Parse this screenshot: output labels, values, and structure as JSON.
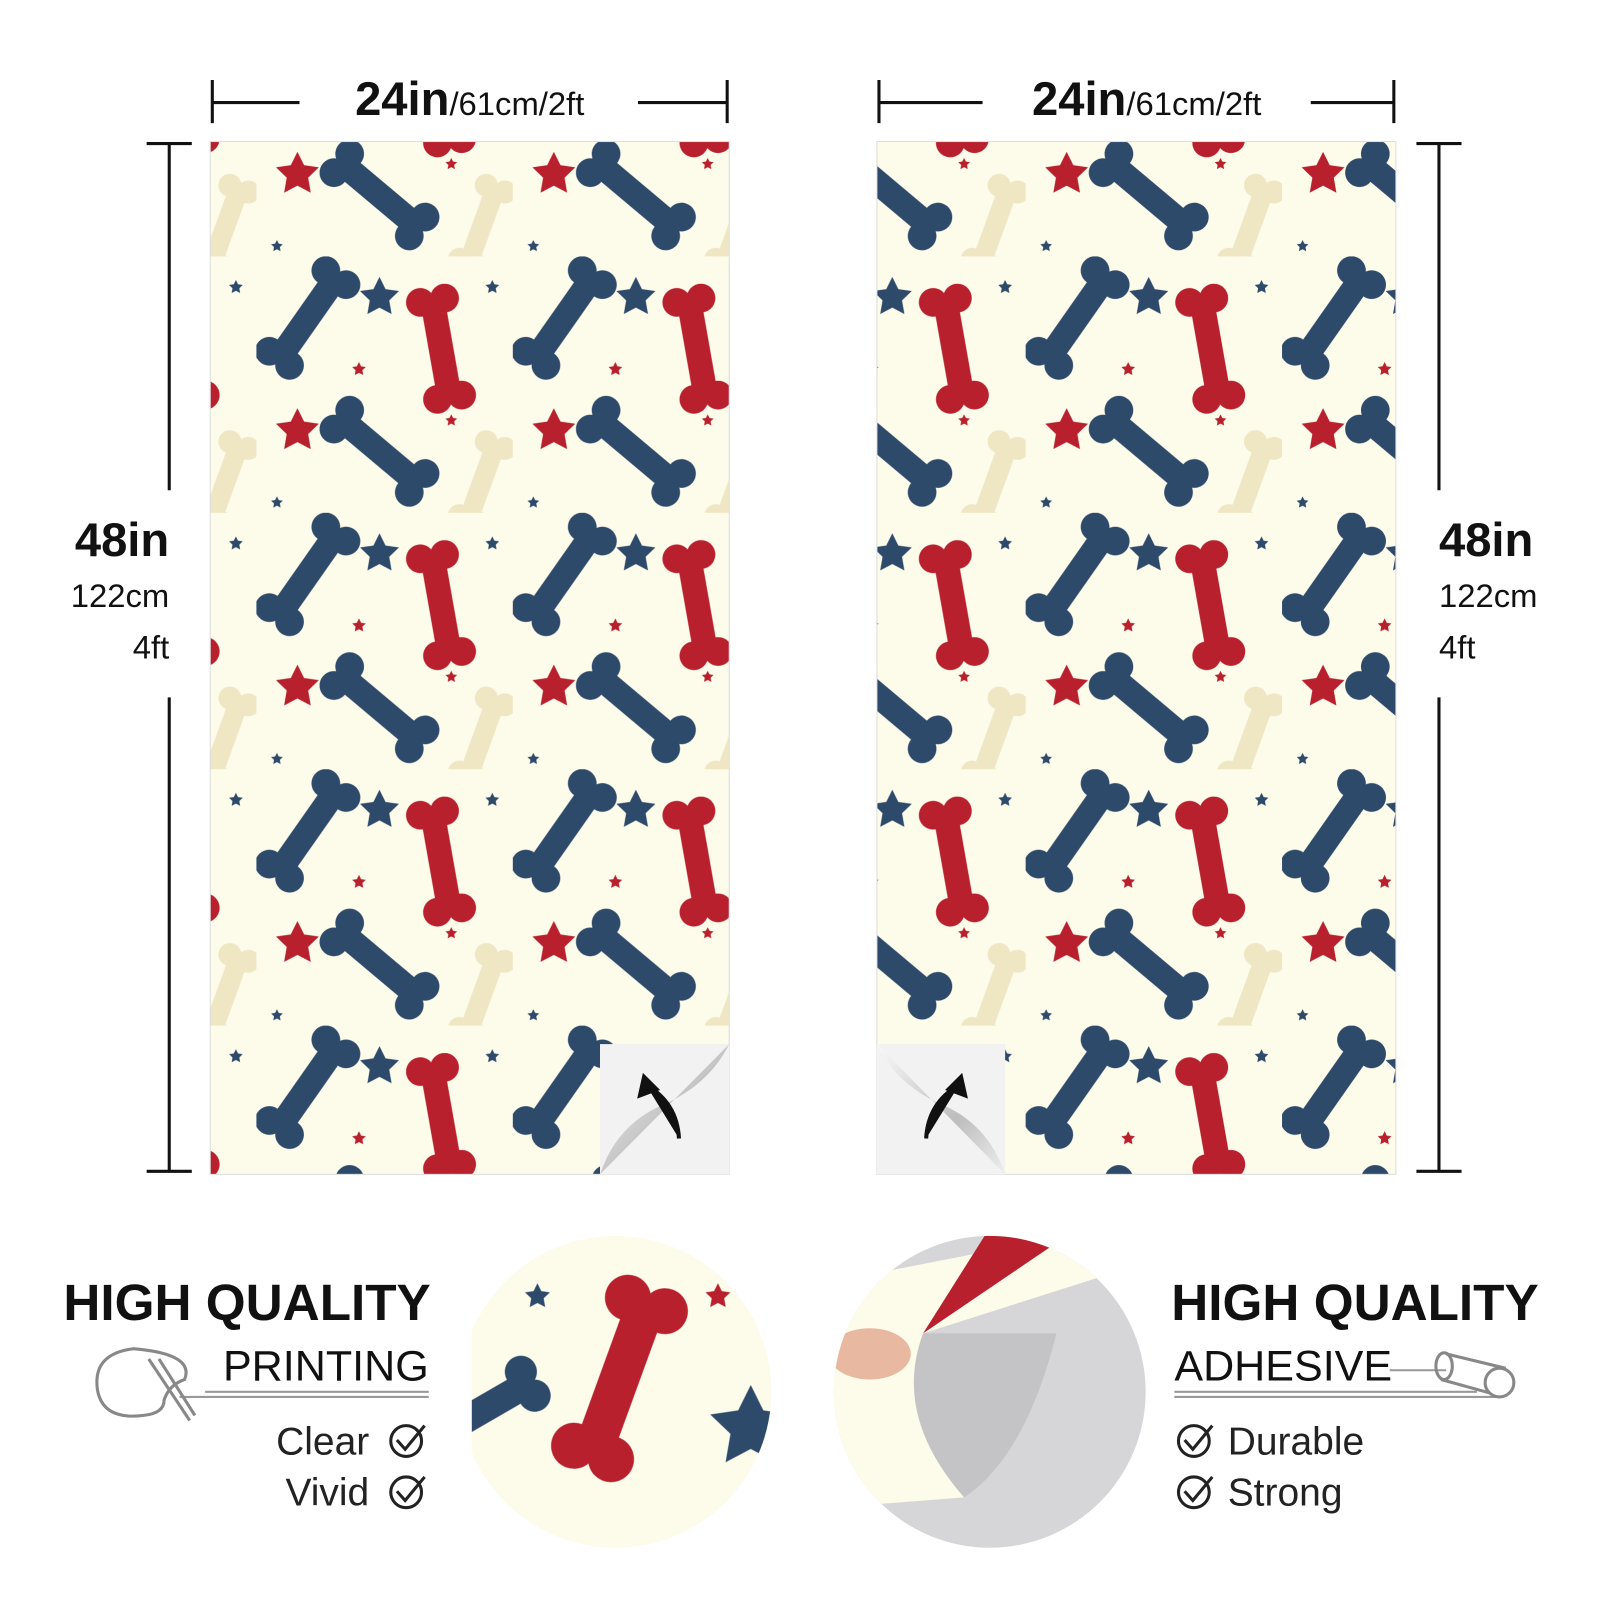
{
  "panels": [
    {
      "width": {
        "main": "24in",
        "sub": "/61cm/2ft"
      },
      "height": {
        "main": "48in",
        "lines": [
          "122cm",
          "4ft"
        ]
      }
    },
    {
      "width": {
        "main": "24in",
        "sub": "/61cm/2ft"
      },
      "height": {
        "main": "48in",
        "lines": [
          "122cm",
          "4ft"
        ]
      }
    }
  ],
  "features": [
    {
      "title": "HIGH QUALITY",
      "subtitle": "PRINTING",
      "points": [
        "Clear",
        "Vivid"
      ]
    },
    {
      "title": "HIGH QUALITY",
      "subtitle": "ADHESIVE",
      "points": [
        "Durable",
        "Strong"
      ]
    }
  ]
}
